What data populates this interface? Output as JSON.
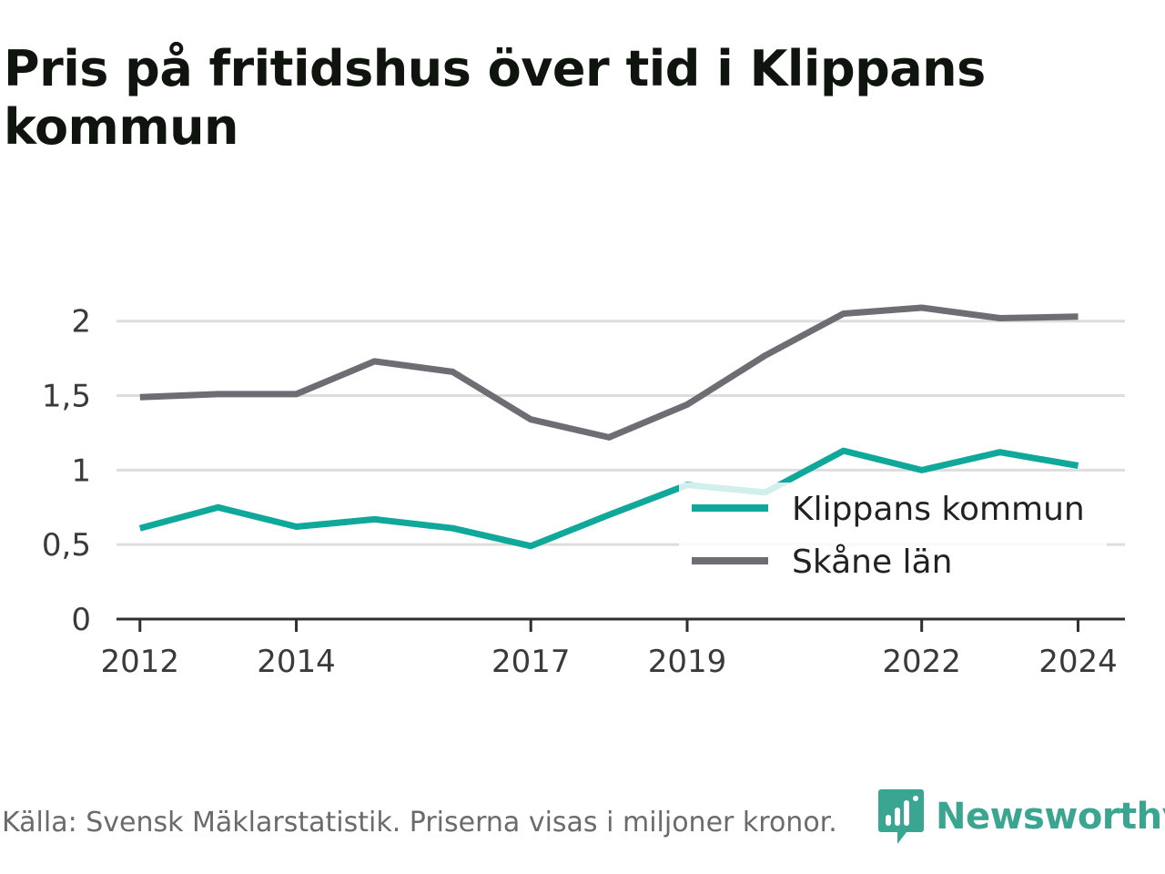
{
  "title": "Pris på fritidshus över tid i Klippans kommun",
  "footer": {
    "source": "Källa: Svensk Mäklarstatistik. Priserna visas i miljoner kronor.",
    "brand": "Newsworthy"
  },
  "colors": {
    "klippan": "#0fa89a",
    "skane": "#6d6d73",
    "grid": "#dddddd",
    "axis": "#2f2f2f",
    "brand": "#3aa692"
  },
  "chart_data": {
    "type": "line",
    "title": "Pris på fritidshus över tid i Klippans kommun",
    "xlabel": "",
    "ylabel": "",
    "x": [
      2012,
      2013,
      2014,
      2015,
      2016,
      2017,
      2018,
      2019,
      2020,
      2021,
      2022,
      2023,
      2024
    ],
    "x_tick_values": [
      2012,
      2014,
      2017,
      2019,
      2022,
      2024
    ],
    "x_tick_labels": [
      "2012",
      "2014",
      "2017",
      "2019",
      "2022",
      "2024"
    ],
    "y_ticks": [
      0,
      0.5,
      1,
      1.5,
      2
    ],
    "y_tick_labels": [
      "0",
      "0,5",
      "1",
      "1,5",
      "2"
    ],
    "xlim": [
      2011.7,
      2024.6
    ],
    "ylim": [
      0,
      2.2
    ],
    "grid": true,
    "legend_position": "bottom-right",
    "series": [
      {
        "name": "Klippans kommun",
        "color": "#0fa89a",
        "values": [
          0.61,
          0.75,
          0.62,
          0.67,
          0.61,
          0.49,
          0.7,
          0.9,
          0.85,
          1.13,
          1.0,
          1.12,
          1.03
        ]
      },
      {
        "name": "Skåne län",
        "color": "#6d6d73",
        "values": [
          1.49,
          1.51,
          1.51,
          1.73,
          1.66,
          1.34,
          1.22,
          1.44,
          1.77,
          2.05,
          2.09,
          2.02,
          2.03
        ]
      }
    ]
  }
}
